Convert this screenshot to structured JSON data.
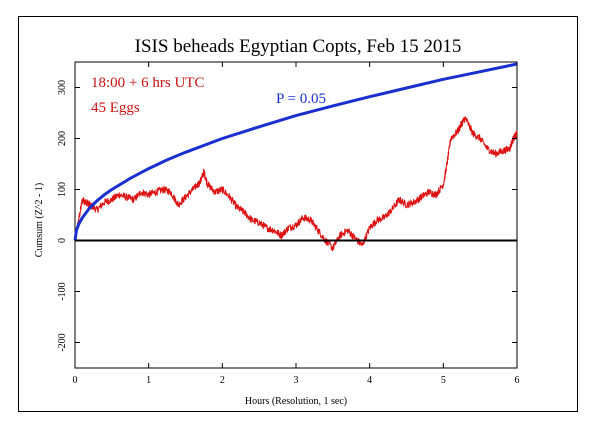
{
  "chart_data": {
    "type": "line",
    "title": "ISIS beheads Egyptian Copts, Feb 15 2015",
    "xlabel": "Hours (Resolution, 1 sec)",
    "ylabel": "Cumsum (Z^2 - 1)",
    "xlim": [
      0,
      6
    ],
    "ylim": [
      -250,
      350
    ],
    "x_ticks": [
      0,
      1,
      2,
      3,
      4,
      5,
      6
    ],
    "y_ticks": [
      -200,
      -100,
      0,
      100,
      200,
      300
    ],
    "grid": false,
    "annotations": [
      {
        "text": "18:00 + 6 hrs UTC",
        "color": "#cc1111"
      },
      {
        "text": "45 Eggs",
        "color": "#cc1111"
      },
      {
        "text": "P = 0.05",
        "color": "#1a2fd0"
      }
    ],
    "series": [
      {
        "color": "#dd1111",
        "x": [
          0,
          0.05,
          0.1,
          0.15,
          0.2,
          0.3,
          0.4,
          0.5,
          0.6,
          0.7,
          0.8,
          0.9,
          1.0,
          1.1,
          1.2,
          1.3,
          1.4,
          1.5,
          1.6,
          1.7,
          1.75,
          1.8,
          1.9,
          2.0,
          2.1,
          2.2,
          2.3,
          2.4,
          2.5,
          2.6,
          2.7,
          2.8,
          2.9,
          3.0,
          3.1,
          3.2,
          3.3,
          3.4,
          3.5,
          3.6,
          3.7,
          3.8,
          3.9,
          4.0,
          4.1,
          4.2,
          4.3,
          4.4,
          4.5,
          4.6,
          4.7,
          4.8,
          4.9,
          5.0,
          5.05,
          5.1,
          5.2,
          5.25,
          5.3,
          5.4,
          5.5,
          5.6,
          5.7,
          5.8,
          5.9,
          5.95,
          6.0
        ],
        "values": [
          0,
          40,
          80,
          75,
          70,
          60,
          75,
          80,
          90,
          85,
          80,
          95,
          90,
          95,
          100,
          95,
          70,
          85,
          100,
          115,
          135,
          110,
          95,
          100,
          85,
          65,
          55,
          40,
          35,
          25,
          20,
          10,
          25,
          30,
          45,
          40,
          20,
          0,
          -15,
          10,
          20,
          5,
          -10,
          25,
          40,
          45,
          60,
          80,
          70,
          75,
          85,
          95,
          90,
          110,
          150,
          200,
          215,
          230,
          240,
          210,
          200,
          180,
          170,
          175,
          180,
          200,
          210
        ]
      },
      {
        "name": "P = 0.05",
        "color": "#1a2fd0",
        "x": [
          0,
          0.02,
          0.05,
          0.1,
          0.2,
          0.3,
          0.4,
          0.5,
          0.75,
          1.0,
          1.25,
          1.5,
          2.0,
          2.5,
          3.0,
          3.5,
          4.0,
          4.5,
          5.0,
          5.5,
          6.0
        ],
        "values": [
          0,
          20,
          32,
          45,
          64,
          78,
          90,
          100,
          122,
          141,
          158,
          173,
          200,
          223,
          245,
          264,
          282,
          299,
          316,
          331,
          346
        ]
      },
      {
        "color": "#000000",
        "x": [
          0,
          6
        ],
        "values": [
          0,
          0
        ]
      }
    ]
  }
}
